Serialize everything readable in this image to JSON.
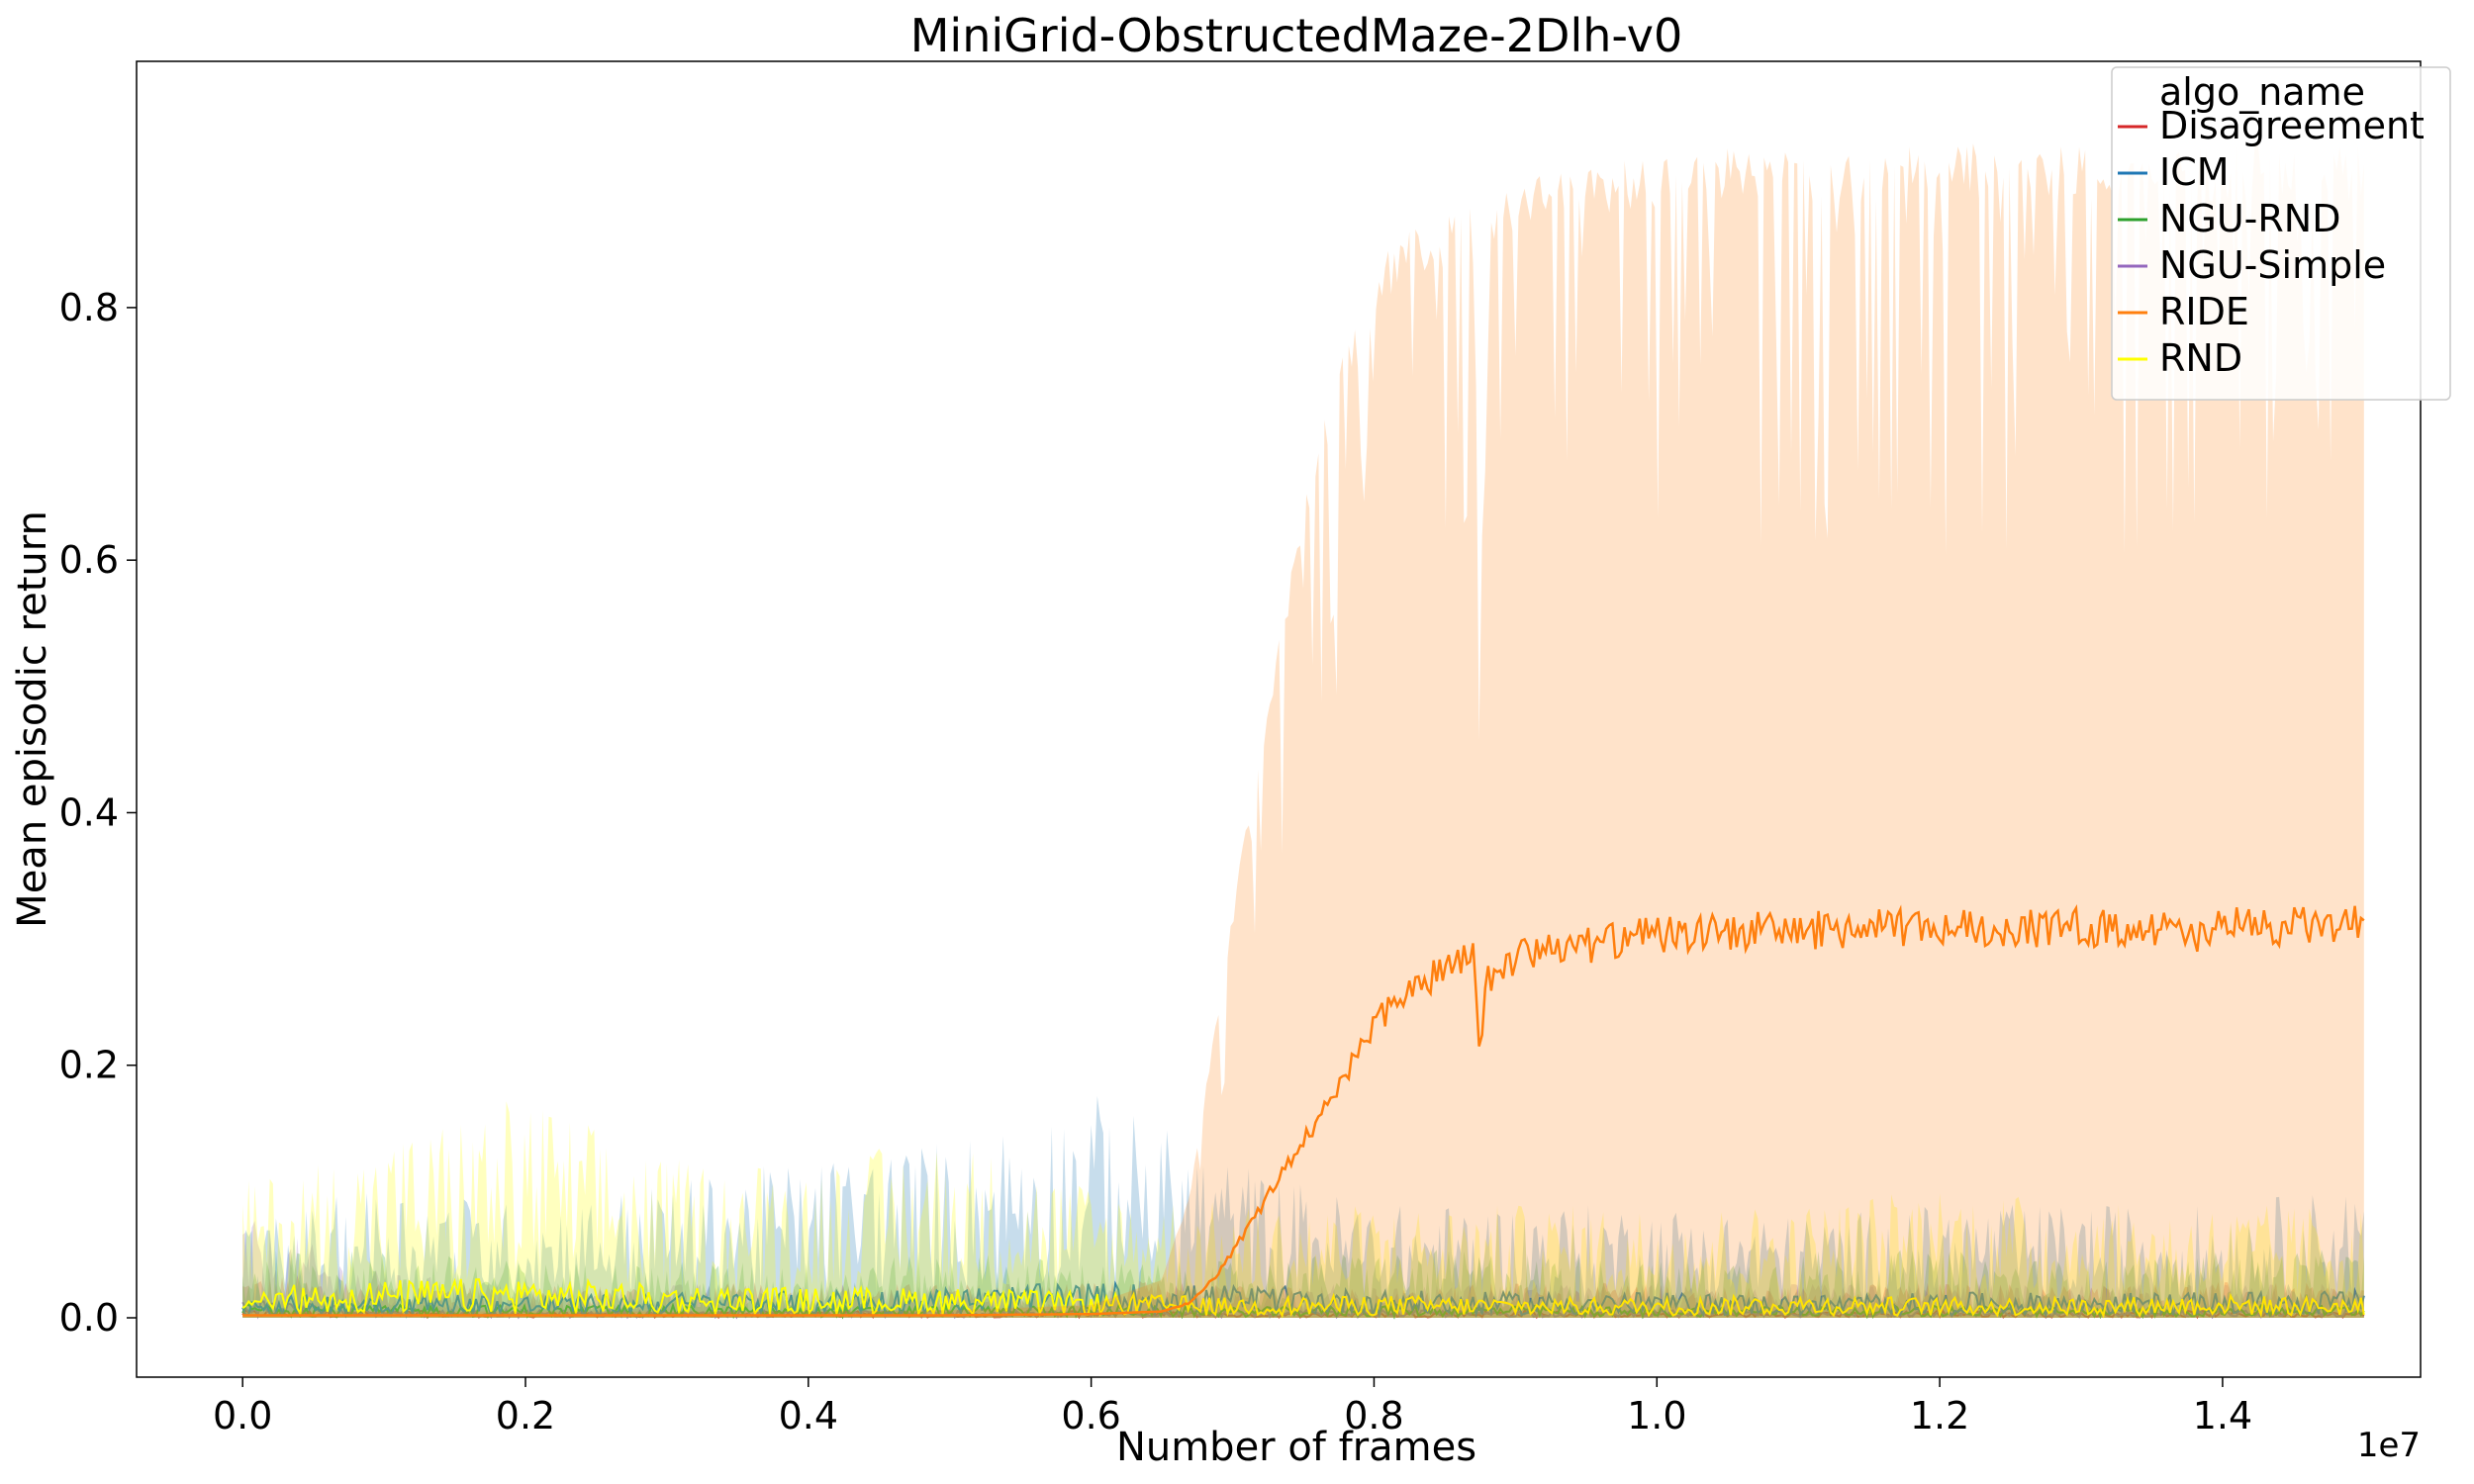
{
  "chart_data": {
    "type": "line",
    "title": "MiniGrid-ObstructedMaze-2Dlh-v0",
    "xlabel": "Number of frames",
    "ylabel": "Mean episodic return",
    "x_offset_label": "1e7",
    "xlim": [
      -0.075,
      1.54
    ],
    "ylim": [
      -0.047,
      0.995
    ],
    "x_unit_multiplier": 10000000,
    "xticks": [
      0.0,
      0.2,
      0.4,
      0.6,
      0.8,
      1.0,
      1.2,
      1.4
    ],
    "xtick_labels": [
      "0.0",
      "0.2",
      "0.4",
      "0.6",
      "0.8",
      "1.0",
      "1.2",
      "1.4"
    ],
    "yticks": [
      0.0,
      0.2,
      0.4,
      0.6,
      0.8
    ],
    "ytick_labels": [
      "0.0",
      "0.2",
      "0.4",
      "0.6",
      "0.8"
    ],
    "grid": false,
    "legend": {
      "title": "algo_name",
      "placement": "top-right",
      "entries": [
        "Disagreement",
        "ICM",
        "NGU-RND",
        "NGU-Simple",
        "RIDE",
        "RND"
      ]
    },
    "series": [
      {
        "name": "Disagreement",
        "color": "#d62728",
        "x": [
          0.0,
          0.1,
          0.2,
          0.3,
          0.4,
          0.5,
          0.6,
          0.7,
          0.8,
          0.9,
          1.0,
          1.1,
          1.2,
          1.3,
          1.4,
          1.5
        ],
        "mean": [
          0.003,
          0.003,
          0.002,
          0.002,
          0.003,
          0.002,
          0.003,
          0.002,
          0.002,
          0.003,
          0.002,
          0.002,
          0.003,
          0.002,
          0.003,
          0.002
        ],
        "upper": [
          0.02,
          0.018,
          0.015,
          0.015,
          0.016,
          0.015,
          0.017,
          0.015,
          0.014,
          0.016,
          0.015,
          0.014,
          0.016,
          0.015,
          0.016,
          0.015
        ]
      },
      {
        "name": "ICM",
        "color": "#1f77b4",
        "x": [
          0.0,
          0.1,
          0.2,
          0.3,
          0.4,
          0.5,
          0.6,
          0.7,
          0.8,
          0.9,
          1.0,
          1.1,
          1.2,
          1.3,
          1.4,
          1.5
        ],
        "mean": [
          0.008,
          0.01,
          0.009,
          0.01,
          0.011,
          0.012,
          0.014,
          0.013,
          0.011,
          0.01,
          0.01,
          0.009,
          0.01,
          0.01,
          0.01,
          0.011
        ],
        "upper": [
          0.04,
          0.06,
          0.05,
          0.06,
          0.07,
          0.08,
          0.1,
          0.07,
          0.05,
          0.05,
          0.05,
          0.045,
          0.05,
          0.05,
          0.05,
          0.06
        ]
      },
      {
        "name": "NGU-RND",
        "color": "#2ca02c",
        "x": [
          0.0,
          0.1,
          0.2,
          0.3,
          0.4,
          0.5,
          0.6,
          0.7,
          0.8,
          0.9,
          1.0,
          1.1,
          1.2,
          1.3,
          1.4,
          1.5
        ],
        "mean": [
          0.006,
          0.005,
          0.005,
          0.005,
          0.004,
          0.005,
          0.005,
          0.004,
          0.005,
          0.005,
          0.004,
          0.005,
          0.005,
          0.004,
          0.005,
          0.005
        ],
        "upper": [
          0.03,
          0.03,
          0.025,
          0.025,
          0.025,
          0.03,
          0.025,
          0.025,
          0.03,
          0.03,
          0.025,
          0.03,
          0.03,
          0.025,
          0.03,
          0.03
        ]
      },
      {
        "name": "NGU-Simple",
        "color": "#9467bd",
        "x": [
          0.0,
          0.1,
          0.2,
          0.3,
          0.4,
          0.5,
          0.6,
          0.7,
          0.8,
          0.9,
          1.0,
          1.1,
          1.2,
          1.3,
          1.4,
          1.5
        ],
        "mean": [
          0.008,
          0.004,
          0.003,
          0.003,
          0.003,
          0.003,
          0.003,
          0.003,
          0.003,
          0.003,
          0.003,
          0.003,
          0.003,
          0.003,
          0.003,
          0.003
        ],
        "upper": [
          0.045,
          0.02,
          0.015,
          0.015,
          0.015,
          0.015,
          0.015,
          0.015,
          0.015,
          0.015,
          0.015,
          0.015,
          0.015,
          0.015,
          0.015,
          0.015
        ]
      },
      {
        "name": "RIDE",
        "color": "#ff7f0e",
        "x": [
          0.0,
          0.1,
          0.2,
          0.3,
          0.4,
          0.5,
          0.6,
          0.65,
          0.67,
          0.69,
          0.71,
          0.73,
          0.75,
          0.77,
          0.79,
          0.8,
          0.82,
          0.84,
          0.86,
          0.87,
          0.875,
          0.88,
          0.9,
          0.92,
          0.94,
          0.96,
          0.98,
          1.0,
          1.05,
          1.1,
          1.15,
          1.2,
          1.25,
          1.3,
          1.35,
          1.38,
          1.4,
          1.45,
          1.5
        ],
        "mean": [
          0.002,
          0.002,
          0.002,
          0.002,
          0.002,
          0.002,
          0.003,
          0.005,
          0.012,
          0.035,
          0.07,
          0.105,
          0.14,
          0.175,
          0.21,
          0.235,
          0.255,
          0.27,
          0.28,
          0.285,
          0.2,
          0.27,
          0.285,
          0.29,
          0.293,
          0.297,
          0.3,
          0.303,
          0.306,
          0.307,
          0.308,
          0.309,
          0.309,
          0.309,
          0.31,
          0.3,
          0.31,
          0.31,
          0.311
        ],
        "upper": [
          0.005,
          0.005,
          0.005,
          0.005,
          0.005,
          0.006,
          0.01,
          0.03,
          0.1,
          0.25,
          0.4,
          0.52,
          0.65,
          0.74,
          0.8,
          0.83,
          0.86,
          0.87,
          0.88,
          0.89,
          0.55,
          0.88,
          0.9,
          0.91,
          0.915,
          0.92,
          0.922,
          0.925,
          0.926,
          0.928,
          0.93,
          0.93,
          0.93,
          0.932,
          0.93,
          0.93,
          0.93,
          0.93,
          0.93
        ]
      },
      {
        "name": "RND",
        "color": "#ffff00",
        "x": [
          0.0,
          0.1,
          0.2,
          0.3,
          0.4,
          0.5,
          0.6,
          0.7,
          0.8,
          0.9,
          1.0,
          1.1,
          1.2,
          1.3,
          1.4,
          1.5
        ],
        "mean": [
          0.012,
          0.015,
          0.016,
          0.013,
          0.012,
          0.012,
          0.01,
          0.008,
          0.009,
          0.008,
          0.008,
          0.009,
          0.008,
          0.008,
          0.009,
          0.008
        ],
        "upper": [
          0.06,
          0.08,
          0.1,
          0.07,
          0.07,
          0.08,
          0.06,
          0.05,
          0.05,
          0.05,
          0.05,
          0.05,
          0.06,
          0.05,
          0.05,
          0.05
        ]
      }
    ]
  }
}
